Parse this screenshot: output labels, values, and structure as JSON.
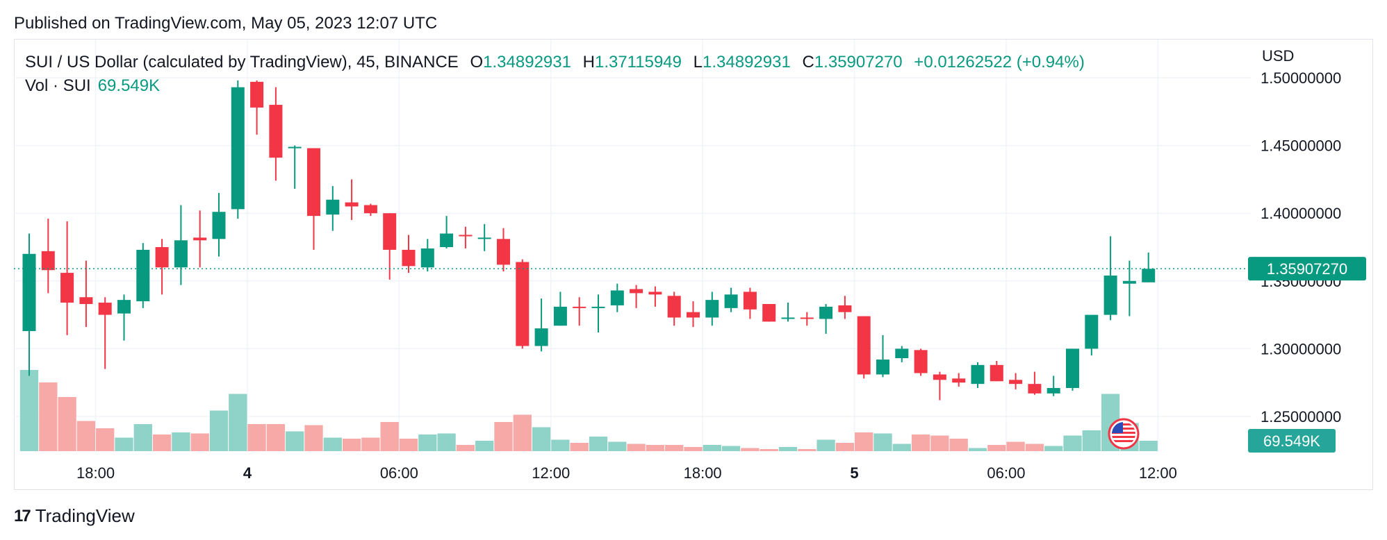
{
  "published": "Published on TradingView.com, May 05, 2023 12:07 UTC",
  "legend": {
    "symbol": "SUI / US Dollar (calculated by TradingView), 45, BINANCE",
    "o_label": "O",
    "o": "1.34892931",
    "h_label": "H",
    "h": "1.37115949",
    "l_label": "L",
    "l": "1.34892931",
    "c_label": "C",
    "c": "1.35907270",
    "change": "+0.01262522 (+0.94%)"
  },
  "volume_legend": {
    "label": "Vol · SUI",
    "value": "69.549K"
  },
  "currency": "USD",
  "brand": {
    "mark": "17",
    "name": "TradingView"
  },
  "colors": {
    "up": "#089981",
    "down": "#f23645",
    "vol_up": "#8fd3c8",
    "vol_down": "#f7a9a7",
    "grid": "#f0f3fa"
  },
  "icons": {
    "flag": "us-flag-icon"
  },
  "chart_data": {
    "type": "candlestick",
    "interval_minutes": 45,
    "yticks": [
      "1.25000000",
      "1.30000000",
      "1.35000000",
      "1.40000000",
      "1.45000000",
      "1.50000000"
    ],
    "ylim": [
      1.22,
      1.5
    ],
    "xticks": [
      {
        "label": "18:00",
        "bold": false,
        "index": 3.5
      },
      {
        "label": "4",
        "bold": true,
        "index": 11.5
      },
      {
        "label": "06:00",
        "bold": false,
        "index": 19.5
      },
      {
        "label": "12:00",
        "bold": false,
        "index": 27.5
      },
      {
        "label": "18:00",
        "bold": false,
        "index": 35.5
      },
      {
        "label": "5",
        "bold": true,
        "index": 43.5
      },
      {
        "label": "06:00",
        "bold": false,
        "index": 51.5
      },
      {
        "label": "12:00",
        "bold": false,
        "index": 59.5
      }
    ],
    "last_price_label": "1.35907270",
    "last_volume_label": "69.549K",
    "last_price": 1.3590727,
    "volume_max": 1000,
    "candles": [
      {
        "o": 1.313,
        "h": 1.385,
        "l": 1.28,
        "c": 1.37,
        "v": 780
      },
      {
        "o": 1.372,
        "h": 1.396,
        "l": 1.341,
        "c": 1.358,
        "v": 660
      },
      {
        "o": 1.356,
        "h": 1.394,
        "l": 1.31,
        "c": 1.334,
        "v": 520
      },
      {
        "o": 1.338,
        "h": 1.365,
        "l": 1.316,
        "c": 1.333,
        "v": 290
      },
      {
        "o": 1.334,
        "h": 1.338,
        "l": 1.285,
        "c": 1.325,
        "v": 220
      },
      {
        "o": 1.326,
        "h": 1.34,
        "l": 1.306,
        "c": 1.336,
        "v": 130
      },
      {
        "o": 1.335,
        "h": 1.378,
        "l": 1.33,
        "c": 1.373,
        "v": 260
      },
      {
        "o": 1.375,
        "h": 1.381,
        "l": 1.34,
        "c": 1.36,
        "v": 160
      },
      {
        "o": 1.36,
        "h": 1.406,
        "l": 1.347,
        "c": 1.38,
        "v": 180
      },
      {
        "o": 1.382,
        "h": 1.402,
        "l": 1.36,
        "c": 1.38,
        "v": 170
      },
      {
        "o": 1.381,
        "h": 1.415,
        "l": 1.368,
        "c": 1.401,
        "v": 390
      },
      {
        "o": 1.403,
        "h": 1.498,
        "l": 1.396,
        "c": 1.493,
        "v": 550
      },
      {
        "o": 1.497,
        "h": 1.498,
        "l": 1.458,
        "c": 1.478,
        "v": 260
      },
      {
        "o": 1.48,
        "h": 1.493,
        "l": 1.424,
        "c": 1.441,
        "v": 260
      },
      {
        "o": 1.449,
        "h": 1.45,
        "l": 1.418,
        "c": 1.449,
        "v": 190
      },
      {
        "o": 1.448,
        "h": 1.448,
        "l": 1.373,
        "c": 1.398,
        "v": 250
      },
      {
        "o": 1.399,
        "h": 1.42,
        "l": 1.387,
        "c": 1.41,
        "v": 130
      },
      {
        "o": 1.408,
        "h": 1.425,
        "l": 1.395,
        "c": 1.405,
        "v": 120
      },
      {
        "o": 1.406,
        "h": 1.407,
        "l": 1.398,
        "c": 1.4,
        "v": 130
      },
      {
        "o": 1.4,
        "h": 1.4,
        "l": 1.351,
        "c": 1.373,
        "v": 280
      },
      {
        "o": 1.373,
        "h": 1.384,
        "l": 1.356,
        "c": 1.361,
        "v": 120
      },
      {
        "o": 1.36,
        "h": 1.381,
        "l": 1.357,
        "c": 1.374,
        "v": 160
      },
      {
        "o": 1.375,
        "h": 1.398,
        "l": 1.374,
        "c": 1.385,
        "v": 170
      },
      {
        "o": 1.384,
        "h": 1.39,
        "l": 1.374,
        "c": 1.383,
        "v": 60
      },
      {
        "o": 1.382,
        "h": 1.392,
        "l": 1.372,
        "c": 1.382,
        "v": 100
      },
      {
        "o": 1.381,
        "h": 1.389,
        "l": 1.357,
        "c": 1.362,
        "v": 280
      },
      {
        "o": 1.364,
        "h": 1.366,
        "l": 1.3,
        "c": 1.302,
        "v": 350
      },
      {
        "o": 1.302,
        "h": 1.337,
        "l": 1.298,
        "c": 1.315,
        "v": 230
      },
      {
        "o": 1.317,
        "h": 1.342,
        "l": 1.317,
        "c": 1.331,
        "v": 110
      },
      {
        "o": 1.331,
        "h": 1.338,
        "l": 1.317,
        "c": 1.33,
        "v": 80
      },
      {
        "o": 1.33,
        "h": 1.34,
        "l": 1.312,
        "c": 1.331,
        "v": 140
      },
      {
        "o": 1.332,
        "h": 1.348,
        "l": 1.327,
        "c": 1.343,
        "v": 90
      },
      {
        "o": 1.344,
        "h": 1.347,
        "l": 1.33,
        "c": 1.341,
        "v": 70
      },
      {
        "o": 1.342,
        "h": 1.346,
        "l": 1.331,
        "c": 1.34,
        "v": 60
      },
      {
        "o": 1.339,
        "h": 1.342,
        "l": 1.317,
        "c": 1.323,
        "v": 60
      },
      {
        "o": 1.327,
        "h": 1.335,
        "l": 1.316,
        "c": 1.323,
        "v": 40
      },
      {
        "o": 1.323,
        "h": 1.342,
        "l": 1.317,
        "c": 1.336,
        "v": 60
      },
      {
        "o": 1.33,
        "h": 1.345,
        "l": 1.327,
        "c": 1.34,
        "v": 50
      },
      {
        "o": 1.342,
        "h": 1.345,
        "l": 1.322,
        "c": 1.329,
        "v": 30
      },
      {
        "o": 1.333,
        "h": 1.333,
        "l": 1.32,
        "c": 1.32,
        "v": 20
      },
      {
        "o": 1.322,
        "h": 1.334,
        "l": 1.32,
        "c": 1.323,
        "v": 40
      },
      {
        "o": 1.323,
        "h": 1.327,
        "l": 1.317,
        "c": 1.322,
        "v": 20
      },
      {
        "o": 1.322,
        "h": 1.333,
        "l": 1.311,
        "c": 1.331,
        "v": 110
      },
      {
        "o": 1.332,
        "h": 1.339,
        "l": 1.322,
        "c": 1.327,
        "v": 80
      },
      {
        "o": 1.324,
        "h": 1.324,
        "l": 1.278,
        "c": 1.281,
        "v": 180
      },
      {
        "o": 1.281,
        "h": 1.31,
        "l": 1.279,
        "c": 1.292,
        "v": 170
      },
      {
        "o": 1.293,
        "h": 1.302,
        "l": 1.29,
        "c": 1.3,
        "v": 70
      },
      {
        "o": 1.299,
        "h": 1.3,
        "l": 1.28,
        "c": 1.282,
        "v": 160
      },
      {
        "o": 1.281,
        "h": 1.283,
        "l": 1.262,
        "c": 1.277,
        "v": 150
      },
      {
        "o": 1.278,
        "h": 1.282,
        "l": 1.272,
        "c": 1.275,
        "v": 120
      },
      {
        "o": 1.274,
        "h": 1.29,
        "l": 1.271,
        "c": 1.288,
        "v": 30
      },
      {
        "o": 1.288,
        "h": 1.291,
        "l": 1.276,
        "c": 1.276,
        "v": 60
      },
      {
        "o": 1.277,
        "h": 1.282,
        "l": 1.27,
        "c": 1.274,
        "v": 90
      },
      {
        "o": 1.274,
        "h": 1.283,
        "l": 1.266,
        "c": 1.267,
        "v": 70
      },
      {
        "o": 1.267,
        "h": 1.28,
        "l": 1.265,
        "c": 1.271,
        "v": 50
      },
      {
        "o": 1.271,
        "h": 1.3,
        "l": 1.269,
        "c": 1.3,
        "v": 150
      },
      {
        "o": 1.3,
        "h": 1.324,
        "l": 1.295,
        "c": 1.325,
        "v": 200
      },
      {
        "o": 1.325,
        "h": 1.383,
        "l": 1.321,
        "c": 1.354,
        "v": 550
      },
      {
        "o": 1.348,
        "h": 1.365,
        "l": 1.324,
        "c": 1.35,
        "v": 270
      },
      {
        "o": 1.349,
        "h": 1.371,
        "l": 1.349,
        "c": 1.359,
        "v": 100
      }
    ]
  }
}
